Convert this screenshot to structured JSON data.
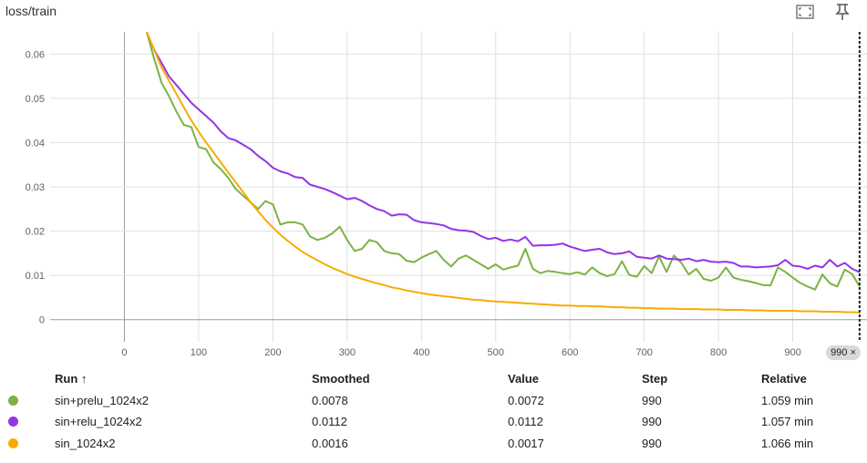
{
  "header": {
    "title": "loss/train",
    "fit_icon": "fit-to-screen-icon",
    "pin_icon": "pin-icon"
  },
  "chart_data": {
    "type": "line",
    "title": "loss/train",
    "xlabel": "",
    "ylabel": "",
    "xlim": [
      -100,
      1000
    ],
    "ylim": [
      -0.005,
      0.065
    ],
    "xticks": [
      0,
      100,
      200,
      300,
      400,
      500,
      600,
      700,
      800,
      900
    ],
    "yticks": [
      0,
      0.01,
      0.02,
      0.03,
      0.04,
      0.05,
      0.06
    ],
    "xtick_labels": [
      "0",
      "100",
      "200",
      "300",
      "400",
      "500",
      "600",
      "700",
      "800",
      "900"
    ],
    "ytick_labels": [
      "0",
      "0.01",
      "0.02",
      "0.03",
      "0.04",
      "0.05",
      "0.06"
    ],
    "grid": true,
    "cursor_step": 990,
    "cursor_label": "990",
    "series": [
      {
        "name": "sin+prelu_1024x2",
        "color": "#7cb342",
        "x": [
          30,
          40,
          50,
          60,
          70,
          80,
          90,
          100,
          110,
          120,
          130,
          140,
          150,
          160,
          170,
          180,
          190,
          200,
          210,
          220,
          230,
          240,
          250,
          260,
          270,
          280,
          290,
          300,
          310,
          320,
          330,
          340,
          350,
          360,
          370,
          380,
          390,
          400,
          410,
          420,
          430,
          440,
          450,
          460,
          470,
          480,
          490,
          500,
          510,
          520,
          530,
          540,
          550,
          560,
          570,
          580,
          590,
          600,
          610,
          620,
          630,
          640,
          650,
          660,
          670,
          680,
          690,
          700,
          710,
          720,
          730,
          740,
          750,
          760,
          770,
          780,
          790,
          800,
          810,
          820,
          830,
          840,
          850,
          860,
          870,
          880,
          890,
          900,
          910,
          920,
          930,
          940,
          950,
          960,
          970,
          980,
          990
        ],
        "values": [
          0.065,
          0.059,
          0.0535,
          0.0505,
          0.047,
          0.044,
          0.0435,
          0.039,
          0.0385,
          0.0355,
          0.034,
          0.032,
          0.0295,
          0.028,
          0.0265,
          0.025,
          0.0268,
          0.026,
          0.0215,
          0.022,
          0.022,
          0.0215,
          0.0188,
          0.018,
          0.0185,
          0.0195,
          0.021,
          0.018,
          0.0155,
          0.016,
          0.018,
          0.0175,
          0.0155,
          0.015,
          0.0148,
          0.0133,
          0.013,
          0.014,
          0.0148,
          0.0155,
          0.0135,
          0.012,
          0.0138,
          0.0145,
          0.0135,
          0.0125,
          0.0115,
          0.0125,
          0.0113,
          0.0118,
          0.0122,
          0.016,
          0.0115,
          0.0105,
          0.011,
          0.0108,
          0.0105,
          0.0103,
          0.0107,
          0.0102,
          0.0118,
          0.0105,
          0.0098,
          0.0103,
          0.0132,
          0.0101,
          0.0097,
          0.0121,
          0.0105,
          0.0143,
          0.0108,
          0.0145,
          0.0128,
          0.0102,
          0.0115,
          0.0092,
          0.0088,
          0.0095,
          0.0118,
          0.0095,
          0.009,
          0.0087,
          0.0083,
          0.0078,
          0.0077,
          0.0118,
          0.0108,
          0.0095,
          0.0083,
          0.0075,
          0.0068,
          0.0102,
          0.0082,
          0.0075,
          0.0113,
          0.0103,
          0.0075
        ]
      },
      {
        "name": "sin+relu_1024x2",
        "color": "#9334e6",
        "x": [
          30,
          40,
          50,
          60,
          70,
          80,
          90,
          100,
          110,
          120,
          130,
          140,
          150,
          160,
          170,
          180,
          190,
          200,
          210,
          220,
          230,
          240,
          250,
          260,
          270,
          280,
          290,
          300,
          310,
          320,
          330,
          340,
          350,
          360,
          370,
          380,
          390,
          400,
          410,
          420,
          430,
          440,
          450,
          460,
          470,
          480,
          490,
          500,
          510,
          520,
          530,
          540,
          550,
          560,
          570,
          580,
          590,
          600,
          610,
          620,
          630,
          640,
          650,
          660,
          670,
          680,
          690,
          700,
          710,
          720,
          730,
          740,
          750,
          760,
          770,
          780,
          790,
          800,
          810,
          820,
          830,
          840,
          850,
          860,
          870,
          880,
          890,
          900,
          910,
          920,
          930,
          940,
          950,
          960,
          970,
          980,
          990
        ],
        "values": [
          0.065,
          0.061,
          0.058,
          0.055,
          0.053,
          0.051,
          0.049,
          0.0475,
          0.046,
          0.0445,
          0.0425,
          0.041,
          0.0405,
          0.0395,
          0.0385,
          0.037,
          0.0358,
          0.0343,
          0.0335,
          0.033,
          0.0322,
          0.032,
          0.0305,
          0.03,
          0.0295,
          0.0288,
          0.028,
          0.0272,
          0.0275,
          0.0268,
          0.0258,
          0.025,
          0.0245,
          0.0235,
          0.0238,
          0.0237,
          0.0225,
          0.022,
          0.0218,
          0.0216,
          0.0213,
          0.0205,
          0.0202,
          0.0201,
          0.0198,
          0.0189,
          0.0182,
          0.0185,
          0.0178,
          0.0181,
          0.0177,
          0.0187,
          0.0167,
          0.0168,
          0.0168,
          0.0169,
          0.0172,
          0.0165,
          0.016,
          0.0155,
          0.0158,
          0.016,
          0.0152,
          0.0148,
          0.015,
          0.0154,
          0.0142,
          0.014,
          0.0138,
          0.0145,
          0.0138,
          0.0137,
          0.0135,
          0.0138,
          0.0132,
          0.0135,
          0.0131,
          0.013,
          0.0131,
          0.0128,
          0.012,
          0.012,
          0.0118,
          0.0119,
          0.012,
          0.0123,
          0.0135,
          0.0122,
          0.012,
          0.0115,
          0.0122,
          0.0118,
          0.0135,
          0.012,
          0.0128,
          0.0115,
          0.0107
        ]
      },
      {
        "name": "sin_1024x2",
        "color": "#f9ab00",
        "x": [
          30,
          40,
          50,
          60,
          70,
          80,
          90,
          100,
          110,
          120,
          130,
          140,
          150,
          160,
          170,
          180,
          190,
          200,
          210,
          220,
          230,
          240,
          250,
          260,
          270,
          280,
          290,
          300,
          310,
          320,
          330,
          340,
          350,
          360,
          370,
          380,
          390,
          400,
          410,
          420,
          430,
          440,
          450,
          460,
          470,
          480,
          490,
          500,
          510,
          520,
          530,
          540,
          550,
          560,
          570,
          580,
          590,
          600,
          610,
          620,
          630,
          640,
          650,
          660,
          670,
          680,
          690,
          700,
          710,
          720,
          730,
          740,
          750,
          760,
          770,
          780,
          790,
          800,
          810,
          820,
          830,
          840,
          850,
          860,
          870,
          880,
          890,
          900,
          910,
          920,
          930,
          940,
          950,
          960,
          970,
          980,
          990
        ],
        "values": [
          0.065,
          0.061,
          0.057,
          0.054,
          0.051,
          0.048,
          0.045,
          0.0425,
          0.04,
          0.0378,
          0.0355,
          0.0332,
          0.031,
          0.0288,
          0.0265,
          0.0245,
          0.0225,
          0.0208,
          0.0192,
          0.0178,
          0.0165,
          0.0153,
          0.0143,
          0.0134,
          0.0125,
          0.0117,
          0.011,
          0.0103,
          0.0097,
          0.0092,
          0.0087,
          0.0082,
          0.0078,
          0.0073,
          0.007,
          0.0066,
          0.0063,
          0.006,
          0.0057,
          0.0055,
          0.0053,
          0.0051,
          0.0049,
          0.0047,
          0.0045,
          0.0044,
          0.0042,
          0.0041,
          0.004,
          0.0039,
          0.0038,
          0.0037,
          0.0036,
          0.0035,
          0.0034,
          0.0033,
          0.0032,
          0.0032,
          0.0031,
          0.0031,
          0.003,
          0.003,
          0.0029,
          0.0028,
          0.0028,
          0.0027,
          0.0027,
          0.0026,
          0.0026,
          0.0025,
          0.0025,
          0.0025,
          0.0024,
          0.0024,
          0.0024,
          0.0023,
          0.0023,
          0.0023,
          0.0022,
          0.0022,
          0.0022,
          0.0021,
          0.0021,
          0.0021,
          0.002,
          0.002,
          0.002,
          0.002,
          0.0019,
          0.0019,
          0.0019,
          0.0018,
          0.0018,
          0.0018,
          0.0017,
          0.0017,
          0.0016
        ]
      }
    ]
  },
  "table": {
    "headers": {
      "run": "Run ↑",
      "smoothed": "Smoothed",
      "value": "Value",
      "step": "Step",
      "relative": "Relative"
    },
    "rows": [
      {
        "run": "sin+prelu_1024x2",
        "smoothed": "0.0078",
        "value": "0.0072",
        "step": "990",
        "relative": "1.059 min",
        "color": "#7cb342"
      },
      {
        "run": "sin+relu_1024x2",
        "smoothed": "0.0112",
        "value": "0.0112",
        "step": "990",
        "relative": "1.057 min",
        "color": "#9334e6"
      },
      {
        "run": "sin_1024x2",
        "smoothed": "0.0016",
        "value": "0.0017",
        "step": "990",
        "relative": "1.066 min",
        "color": "#f9ab00"
      }
    ]
  }
}
